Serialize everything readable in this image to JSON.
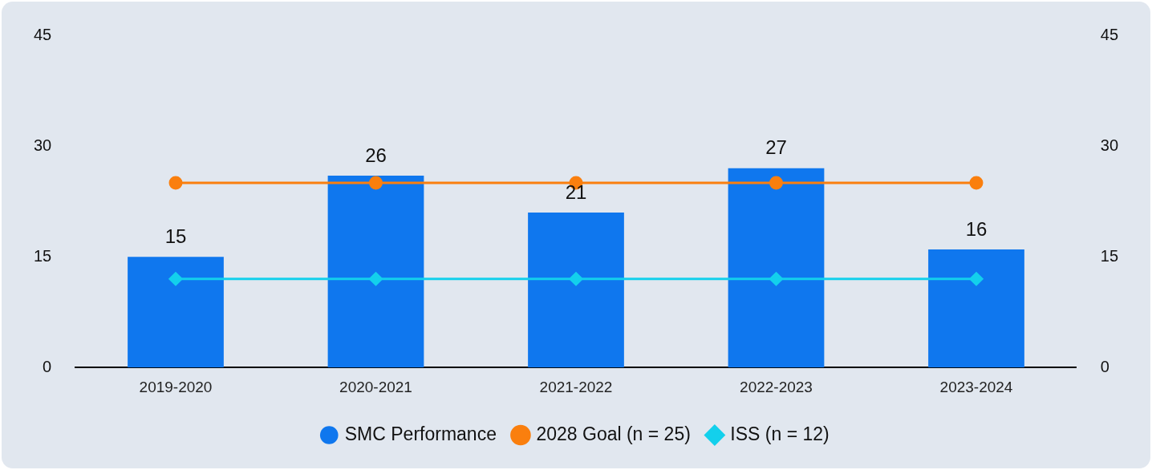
{
  "chart_data": {
    "type": "bar",
    "categories": [
      "2019-2020",
      "2020-2021",
      "2021-2022",
      "2022-2023",
      "2023-2024"
    ],
    "series": [
      {
        "name": "SMC Performance",
        "color": "#0f77ee",
        "values": [
          15,
          26,
          21,
          27,
          16
        ],
        "value_labels": [
          "15",
          "26",
          "21",
          "27",
          "16"
        ]
      },
      {
        "name": "2028 Goal (n = 25)",
        "type": "line",
        "color": "#fa7f0e",
        "marker": "circle",
        "values": [
          25,
          25,
          25,
          25,
          25
        ]
      },
      {
        "name": "ISS (n = 12)",
        "type": "line",
        "color": "#13d0ec",
        "marker": "diamond",
        "values": [
          12,
          12,
          12,
          12,
          12
        ]
      }
    ],
    "ylim": [
      0,
      45
    ],
    "yticks": [
      0,
      15,
      30,
      45
    ],
    "y2lim": [
      0,
      45
    ],
    "y2ticks": [
      0,
      15,
      30,
      45
    ],
    "grid": false,
    "legend": "bottom"
  }
}
